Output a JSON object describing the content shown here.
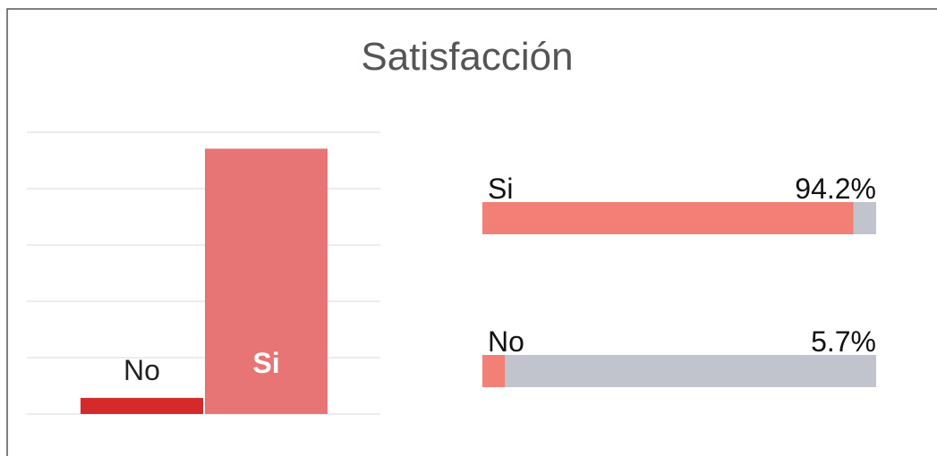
{
  "chart_data": [
    {
      "type": "bar",
      "title": "Satisfacción",
      "categories": [
        "No",
        "Si"
      ],
      "values": [
        5.7,
        94.2
      ],
      "colors": [
        "#d42a2a",
        "#e87575"
      ],
      "ylim": [
        0,
        100
      ],
      "yticks": [
        0,
        20,
        40,
        60,
        80,
        100
      ],
      "grid": true
    },
    {
      "type": "progress",
      "categories": [
        "Si",
        "No"
      ],
      "values": [
        94.2,
        5.7
      ],
      "value_labels": [
        "94.2%",
        "5.7%"
      ],
      "xlim": [
        0,
        100
      ],
      "color": "#f28077",
      "track_color": "#c1c4cd"
    }
  ]
}
